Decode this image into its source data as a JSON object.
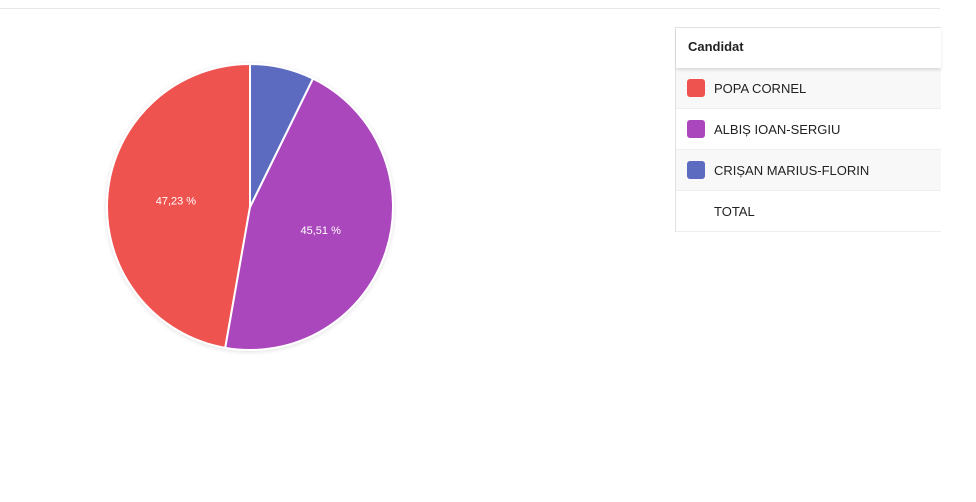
{
  "chart_data": {
    "type": "pie",
    "categories": [
      "POPA CORNEL",
      "ALBIȘ IOAN-SERGIU",
      "CRIȘAN MARIUS-FLORIN"
    ],
    "values": [
      47.23,
      45.51,
      7.26
    ],
    "data_labels": [
      "47,23 %",
      "45,51 %",
      ""
    ],
    "colors": [
      "#ef5350",
      "#ab47bc",
      "#5c6bc0"
    ]
  },
  "legend": {
    "header": "Candidat",
    "rows": [
      {
        "label": "POPA CORNEL",
        "color": "#ef5350"
      },
      {
        "label": "ALBIȘ IOAN-SERGIU",
        "color": "#ab47bc"
      },
      {
        "label": "CRIȘAN MARIUS-FLORIN",
        "color": "#5c6bc0"
      },
      {
        "label": "TOTAL",
        "color": ""
      }
    ]
  }
}
